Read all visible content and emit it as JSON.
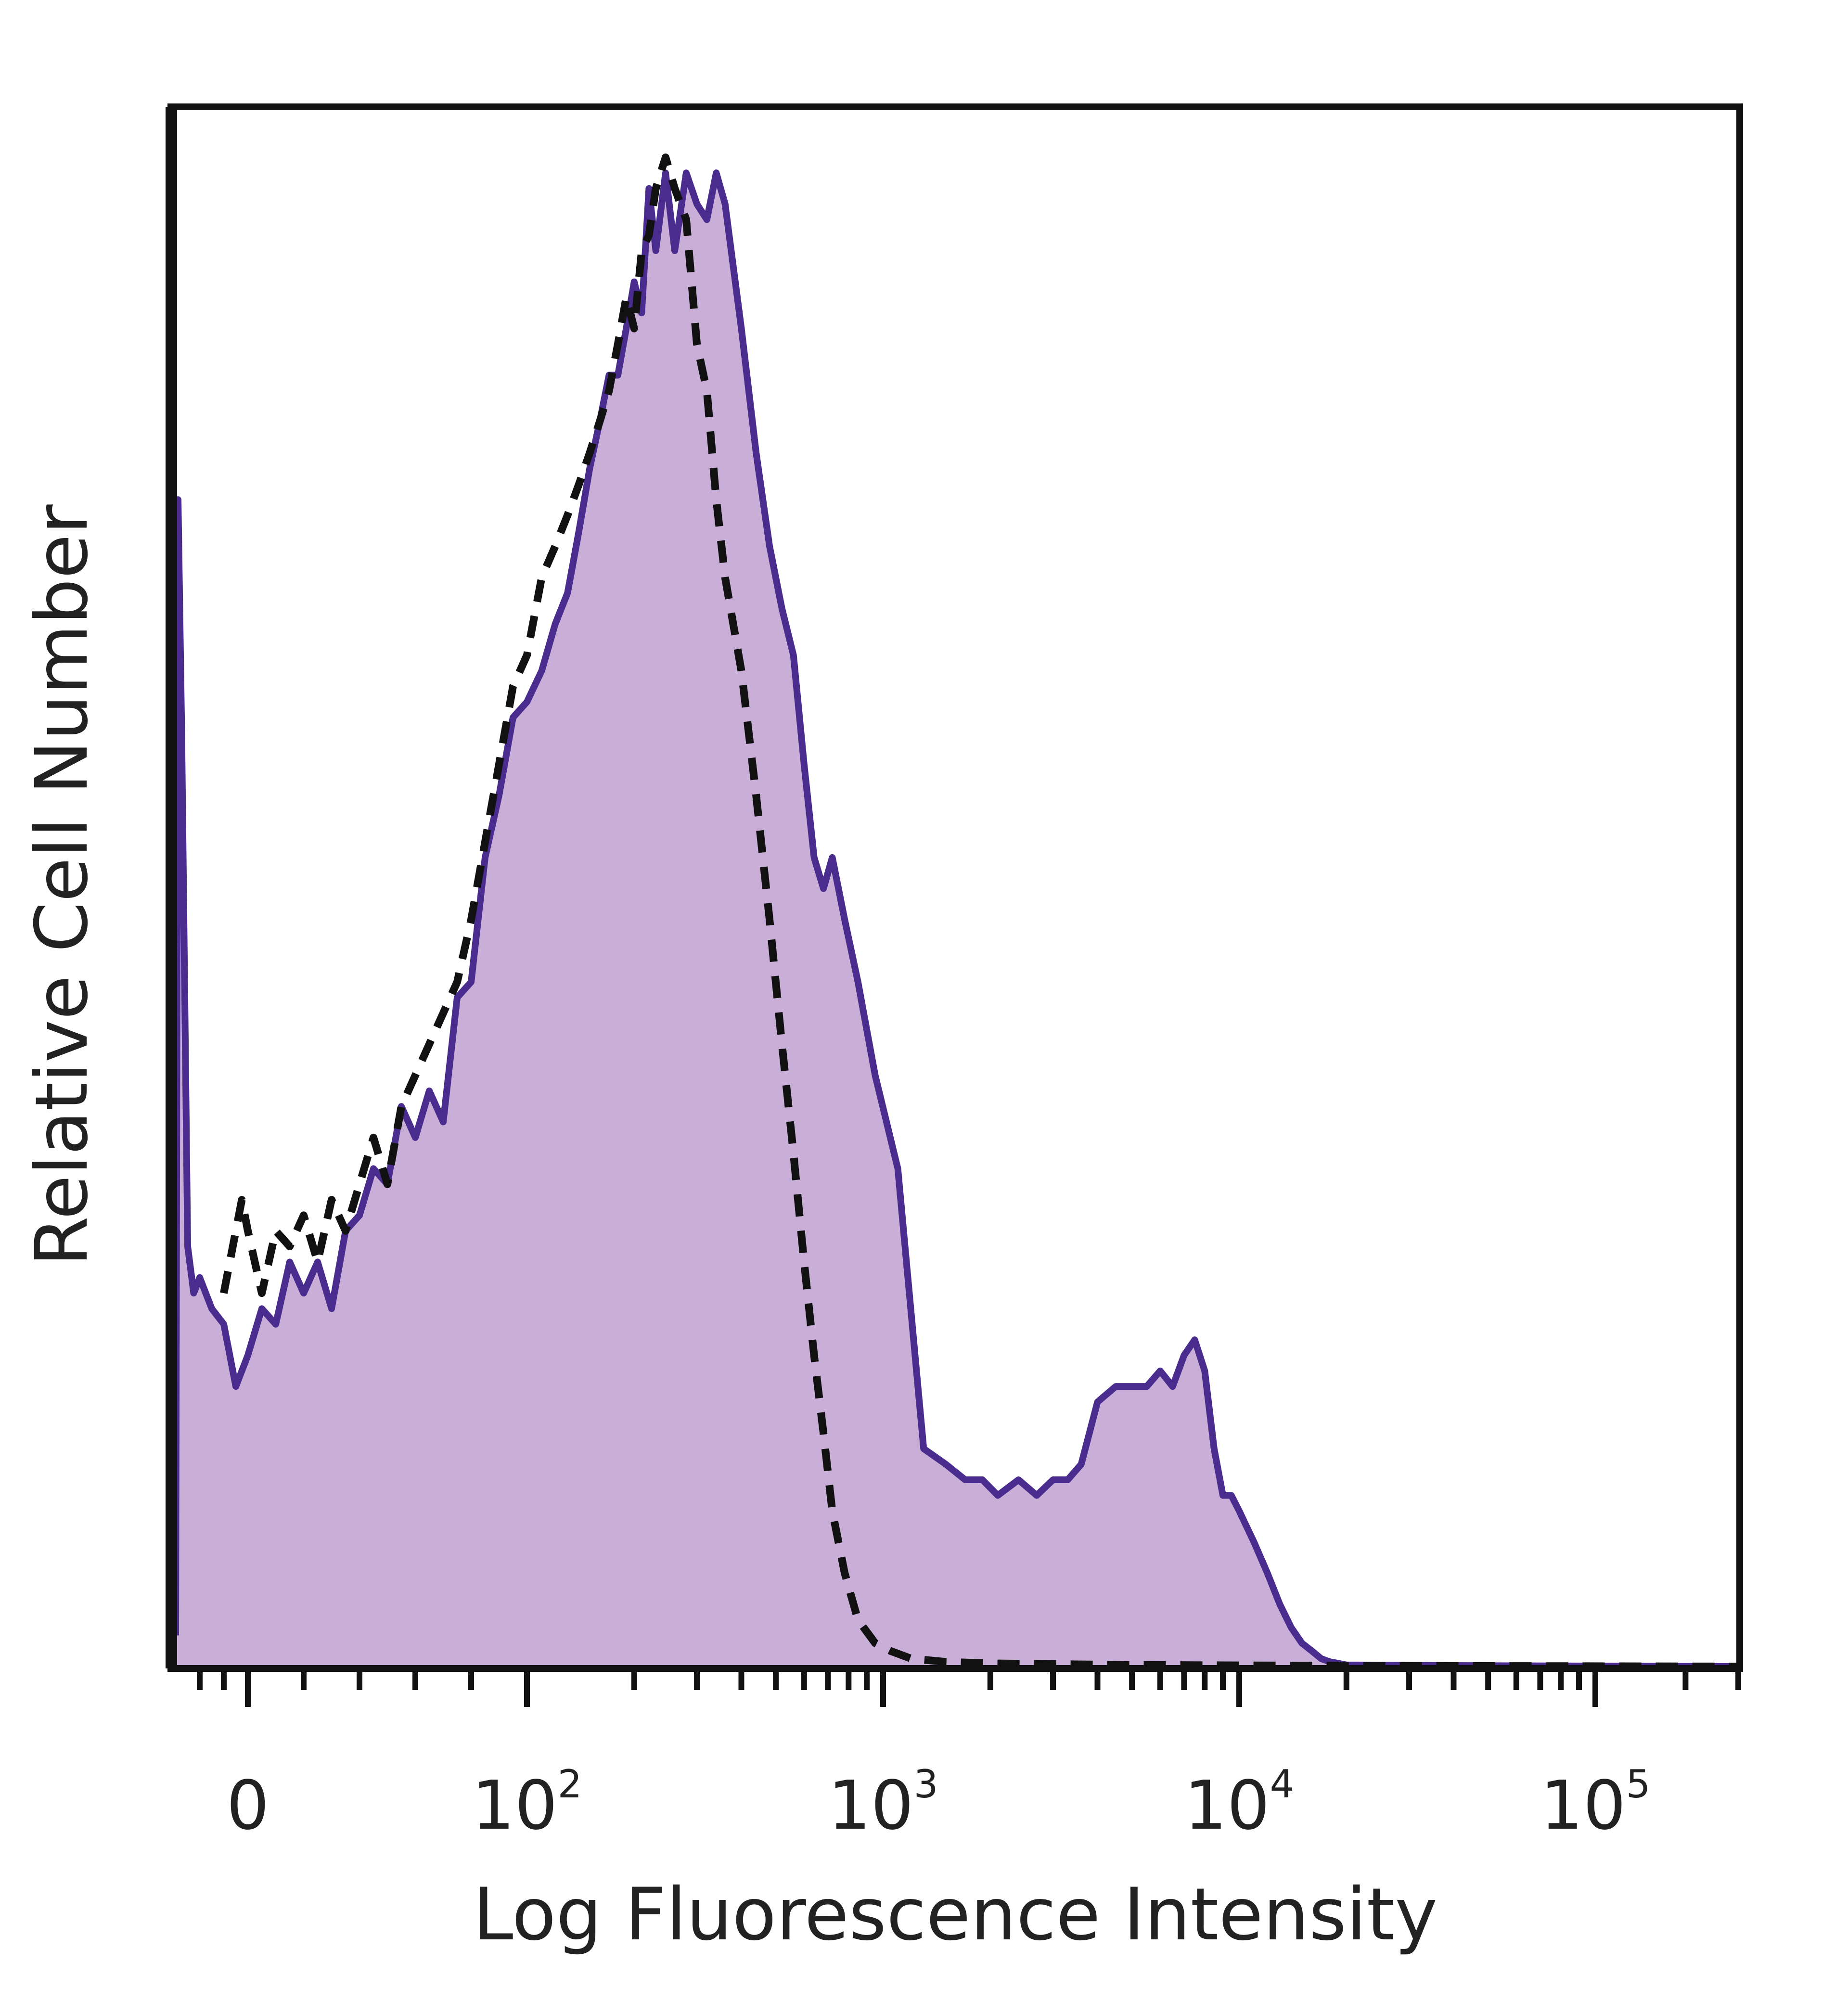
{
  "chart_data": {
    "type": "area",
    "title": "",
    "xlabel": "Log Fluorescence Intensity",
    "ylabel": "Relative Cell Number",
    "x_scale": "biexponential (log above 10^2)",
    "xlim": [
      -60,
      300000
    ],
    "ylim": [
      0,
      100
    ],
    "grid": false,
    "legend": "none",
    "x_ticks": [
      {
        "value": 0,
        "base": "0",
        "exp": ""
      },
      {
        "value": 100,
        "base": "10",
        "exp": "2"
      },
      {
        "value": 1000,
        "base": "10",
        "exp": "3"
      },
      {
        "value": 10000,
        "base": "10",
        "exp": "4"
      },
      {
        "value": 100000,
        "base": "10",
        "exp": "5"
      }
    ],
    "series": [
      {
        "style": "filled solid line",
        "color": "#4a2c8f",
        "fill": "#c9afd8",
        "x": [
          -60,
          -58,
          -55,
          -50,
          -45,
          -40,
          -30,
          -20,
          -10,
          0,
          5,
          10,
          15,
          20,
          25,
          30,
          35,
          40,
          45,
          50,
          55,
          60,
          65,
          70,
          75,
          80,
          85,
          90,
          95,
          100,
          110,
          120,
          130,
          140,
          150,
          160,
          170,
          180,
          190,
          200,
          210,
          220,
          230,
          245,
          260,
          280,
          300,
          320,
          340,
          360,
          400,
          440,
          480,
          520,
          560,
          600,
          640,
          680,
          720,
          780,
          850,
          950,
          1100,
          1300,
          1500,
          1700,
          1900,
          2100,
          2400,
          2700,
          3000,
          3300,
          3600,
          4000,
          4500,
          5000,
          5500,
          6000,
          6500,
          7000,
          7500,
          8000,
          8500,
          9000,
          9500,
          10000,
          11000,
          12000,
          13000,
          14000,
          15000,
          16000,
          17000,
          18000,
          19000,
          20000,
          50000,
          150000,
          300000
        ],
        "y": [
          2,
          75,
          60,
          27,
          24,
          25,
          23,
          22,
          18,
          20,
          23,
          22,
          26,
          24,
          26,
          23,
          28,
          29,
          32,
          31,
          36,
          34,
          37,
          35,
          43,
          44,
          52,
          56,
          61,
          62,
          64,
          67,
          69,
          73,
          77,
          80,
          83,
          83,
          86,
          89,
          87,
          95,
          91,
          96,
          91,
          96,
          94,
          93,
          96,
          94,
          86,
          78,
          72,
          68,
          65,
          58,
          52,
          50,
          52,
          48,
          44,
          38,
          32,
          14,
          13,
          12,
          12,
          11,
          12,
          11,
          12,
          12,
          13,
          17,
          18,
          18,
          18,
          19,
          18,
          20,
          21,
          19,
          14,
          11,
          11,
          10,
          8,
          6,
          4,
          2.5,
          1.5,
          1,
          0.5,
          0.3,
          0.2,
          0.1,
          0.05,
          0.02,
          0
        ]
      },
      {
        "style": "dashed line",
        "color": "#111111",
        "x": [
          -20,
          -15,
          -10,
          -5,
          0,
          5,
          10,
          15,
          20,
          25,
          30,
          35,
          40,
          45,
          50,
          55,
          60,
          65,
          70,
          75,
          80,
          85,
          90,
          95,
          100,
          110,
          120,
          130,
          140,
          150,
          160,
          170,
          180,
          190,
          200,
          210,
          220,
          230,
          245,
          260,
          280,
          300,
          320,
          340,
          360,
          400,
          440,
          480,
          520,
          560,
          600,
          640,
          680,
          720,
          780,
          850,
          950,
          1050,
          1200,
          1500,
          2000,
          5000,
          20000,
          300000
        ],
        "y": [
          24,
          26,
          28,
          30,
          28,
          24,
          28,
          27,
          29,
          26,
          30,
          28,
          31,
          34,
          31,
          36,
          38,
          40,
          42,
          44,
          48,
          53,
          58,
          63,
          65,
          70,
          72,
          74,
          76,
          78,
          80,
          82,
          85,
          88,
          86,
          91,
          92,
          95,
          97,
          95,
          93,
          85,
          82,
          75,
          70,
          64,
          56,
          48,
          40,
          33,
          26,
          20,
          15,
          10,
          6,
          3,
          1.5,
          1,
          0.5,
          0.3,
          0.2,
          0.1,
          0.05,
          0
        ]
      }
    ]
  }
}
